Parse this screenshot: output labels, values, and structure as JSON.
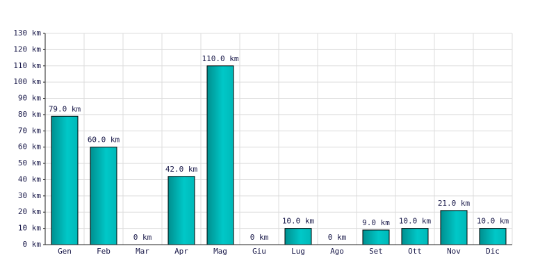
{
  "chart_data": {
    "type": "bar",
    "categories": [
      "Gen",
      "Feb",
      "Mar",
      "Apr",
      "Mag",
      "Giu",
      "Lug",
      "Ago",
      "Set",
      "Ott",
      "Nov",
      "Dic"
    ],
    "values": [
      79,
      60,
      0,
      42,
      110,
      0,
      10,
      0,
      9,
      10,
      21,
      10
    ],
    "value_labels": [
      "79.0 km",
      "60.0 km",
      "0 km",
      "42.0 km",
      "110.0 km",
      "0 km",
      "10.0 km",
      "0 km",
      "9.0 km",
      "10.0 km",
      "21.0 km",
      "10.0 km"
    ],
    "color": "#00c8c8",
    "ylim": [
      0,
      130
    ],
    "yticks": [
      {
        "value": 0,
        "label": "0 km"
      },
      {
        "value": 10,
        "label": "10 km"
      },
      {
        "value": 20,
        "label": "20 km"
      },
      {
        "value": 30,
        "label": "30 km"
      },
      {
        "value": 40,
        "label": "40 km"
      },
      {
        "value": 50,
        "label": "50 km"
      },
      {
        "value": 60,
        "label": "60 km"
      },
      {
        "value": 70,
        "label": "70 km"
      },
      {
        "value": 80,
        "label": "80 km"
      },
      {
        "value": 90,
        "label": "90 km"
      },
      {
        "value": 100,
        "label": "100 km"
      },
      {
        "value": 110,
        "label": "110 km"
      },
      {
        "value": 120,
        "label": "120 km"
      },
      {
        "value": 130,
        "label": "130 km"
      }
    ],
    "grid": true
  }
}
